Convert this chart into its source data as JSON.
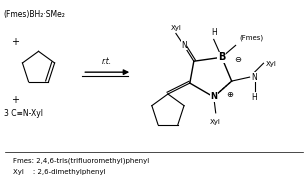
{
  "figsize": [
    3.08,
    1.89
  ],
  "dpi": 100,
  "bg_color": "#ffffff",
  "text_color": "#000000",
  "reactant_top": "(Fmes)BH₂·SMe₂",
  "nitrile": "3 C≡N-Xyl",
  "condition": "r.t.",
  "footnote1": "Fmes: 2,4,6-tris(trifluoromethyl)phenyl",
  "footnote2": "Xyl    : 2,6-dimethylphenyl",
  "lw": 0.8,
  "fs_main": 6.0,
  "fs_label": 5.5,
  "fs_small": 5.0
}
